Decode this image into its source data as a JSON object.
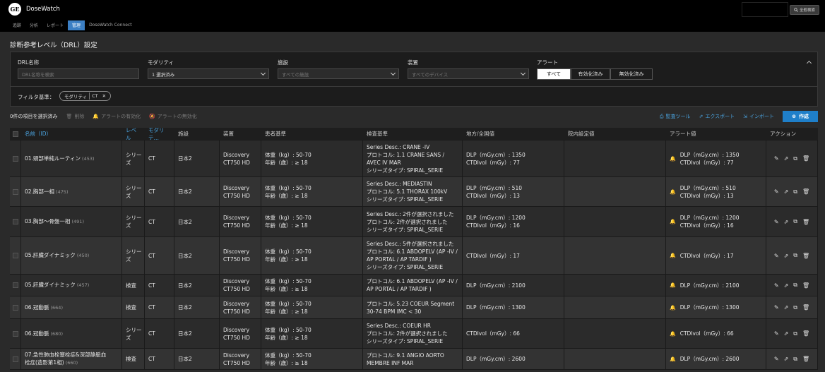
{
  "app": {
    "name": "DoseWatch",
    "logo_text": "GE",
    "search_label": "全般検索"
  },
  "nav": [
    "追跡",
    "分析",
    "レポート",
    "管理",
    "DoseWatch Connect"
  ],
  "nav_active": 3,
  "page_title": "診断参考レベル（DRL）設定",
  "filters": {
    "name_label": "DRL名称",
    "name_placeholder": "DRL名称を検索",
    "modality_label": "モダリティ",
    "modality_value": "1 選択済み",
    "facility_label": "施設",
    "facility_placeholder": "すべての施設",
    "device_label": "装置",
    "device_placeholder": "すべてのデバイス",
    "alert_label": "アラート",
    "alert_options": [
      "すべて",
      "有効化済み",
      "無効化済み"
    ],
    "alert_selected": 0,
    "criteria_label": "フィルタ基準：",
    "chip_key": "モダリティ",
    "chip_value": "CT"
  },
  "toolbar": {
    "selected_count": "0件の項目を選択済み",
    "delete": "削除",
    "enable_alert": "アラートの有効化",
    "disable_alert": "アラートの無効化",
    "audit": "監査ツール",
    "export": "エクスポート",
    "import": "インポート",
    "create": "作成"
  },
  "columns": [
    "名前（ID）",
    "レベル",
    "モダリテ…",
    "施設",
    "装置",
    "患者基準",
    "検査基準",
    "地方/全国値",
    "院内設定値",
    "アラート値",
    "アクション"
  ],
  "icons": {
    "search": "search-icon",
    "trash": "trash-icon",
    "bell": "bell-icon",
    "edit": "pencil-icon",
    "open": "external-link-icon",
    "copy": "copy-icon",
    "upload": "upload-icon",
    "plus": "plus-circle-icon"
  },
  "rows": [
    {
      "name": "01.頭部単純ルーティン",
      "id": "(453)",
      "level": [
        "シリー",
        "ズ"
      ],
      "modality": "CT",
      "facility": "日本2",
      "device": [
        "Discovery",
        "CT750 HD"
      ],
      "patient": [
        "体重（kg）: 50-70",
        "年齢（歳）: ≥ 18"
      ],
      "exam": [
        "Series Desc.: CRANE -IV",
        "プロトコル: 1.1 CRANE SANS /",
        "AVEC IV MAR",
        "シリーズタイプ: SPIRAL_SERIE"
      ],
      "ref": [
        "DLP（mGy.cm）: 1350",
        "CTDIvol（mGy）: 77"
      ],
      "alert": [
        "DLP（mGy.cm）: 1350",
        "CTDIvol（mGy）: 77"
      ]
    },
    {
      "name": "02.胸部一相",
      "id": "(475)",
      "level": [
        "シリー",
        "ズ"
      ],
      "modality": "CT",
      "facility": "日本2",
      "device": [
        "Discovery",
        "CT750 HD"
      ],
      "patient": [
        "体重（kg）: 50-70",
        "年齢（歳）: ≥ 18"
      ],
      "exam": [
        "Series Desc.: MEDIASTIN",
        "プロトコル: 5.1 THORAX 100kV",
        "シリーズタイプ: SPIRAL_SERIE"
      ],
      "ref": [
        "DLP（mGy.cm）: 510",
        "CTDIvol（mGy）: 13"
      ],
      "alert": [
        "DLP（mGy.cm）: 510",
        "CTDIvol（mGy）: 13"
      ]
    },
    {
      "name": "03.胸部〜骨盤一相",
      "id": "(491)",
      "level": [
        "シリー",
        "ズ"
      ],
      "modality": "CT",
      "facility": "日本2",
      "device": [
        "Discovery",
        "CT750 HD"
      ],
      "patient": [
        "体重（kg）: 50-70",
        "年齢（歳）: ≥ 18"
      ],
      "exam": [
        "Series Desc.: 2件が選択されました",
        "プロトコル: 2件が選択されました",
        "シリーズタイプ: SPIRAL_SERIE"
      ],
      "ref": [
        "DLP（mGy.cm）: 1200",
        "CTDIvol（mGy）: 16"
      ],
      "alert": [
        "DLP（mGy.cm）: 1200",
        "CTDIvol（mGy）: 16"
      ]
    },
    {
      "name": "05.肝臓ダイナミック",
      "id": "(450)",
      "level": [
        "シリー",
        "ズ"
      ],
      "modality": "CT",
      "facility": "日本2",
      "device": [
        "Discovery",
        "CT750 HD"
      ],
      "patient": [
        "体重（kg）: 50-70",
        "年齢（歳）: ≥ 18"
      ],
      "exam": [
        "Series Desc.: 5件が選択されました",
        "プロトコル: 6.1 ABDOPELV (AP -IV /",
        "AP PORTAL / AP TARDIF )",
        "シリーズタイプ: SPIRAL_SERIE"
      ],
      "ref": [
        "CTDIvol（mGy）: 17"
      ],
      "alert": [
        "CTDIvol（mGy）: 17"
      ]
    },
    {
      "name": "05.肝臓ダイナミック",
      "id": "(457)",
      "level": [
        "検査"
      ],
      "modality": "CT",
      "facility": "日本2",
      "device": [
        "Discovery",
        "CT750 HD"
      ],
      "patient": [
        "体重（kg）: 50-70",
        "年齢（歳）: ≥ 18"
      ],
      "exam": [
        "プロトコル: 6.1 ABDOPELV (AP -IV /",
        "AP PORTAL / AP TARDIF )"
      ],
      "ref": [
        "DLP（mGy.cm）: 2100"
      ],
      "alert": [
        "DLP（mGy.cm）: 2100"
      ]
    },
    {
      "name": "06.冠動脈",
      "id": "(664)",
      "level": [
        "検査"
      ],
      "modality": "CT",
      "facility": "日本2",
      "device": [
        "Discovery",
        "CT750 HD"
      ],
      "patient": [
        "体重（kg）: 50-70",
        "年齢（歳）: ≥ 18"
      ],
      "exam": [
        "プロトコル: 5.23 COEUR Segment",
        "30-74 BPM IMC < 30"
      ],
      "ref": [
        "DLP（mGy.cm）: 1300"
      ],
      "alert": [
        "DLP（mGy.cm）: 1300"
      ]
    },
    {
      "name": "06.冠動脈",
      "id": "(680)",
      "level": [
        "シリー",
        "ズ"
      ],
      "modality": "CT",
      "facility": "日本2",
      "device": [
        "Discovery",
        "CT750 HD"
      ],
      "patient": [
        "体重（kg）: 50-70",
        "年齢（歳）: ≥ 18"
      ],
      "exam": [
        "Series Desc.: COEUR HR",
        "プロトコル: 2件が選択されました",
        "シリーズタイプ: SPIRAL_SERIE"
      ],
      "ref": [
        "CTDIvol（mGy）: 66"
      ],
      "alert": [
        "CTDIvol（mGy）: 66"
      ]
    },
    {
      "name": "07.急性肺血栓塞栓症&深部静脈血",
      "name2": "栓症(造影第1相)",
      "id": "(660)",
      "level": [
        "検査"
      ],
      "modality": "CT",
      "facility": "日本2",
      "device": [
        "Discovery",
        "CT750 HD"
      ],
      "patient": [
        "体重（kg）: 50-70",
        "年齢（歳）: ≥ 18"
      ],
      "exam": [
        "プロトコル: 9.1 ANGIO AORTO",
        "MEMBRE INF MAR"
      ],
      "ref": [
        "DLP（mGy.cm）: 2600"
      ],
      "alert": [
        "DLP（mGy.cm）: 2600"
      ]
    }
  ]
}
